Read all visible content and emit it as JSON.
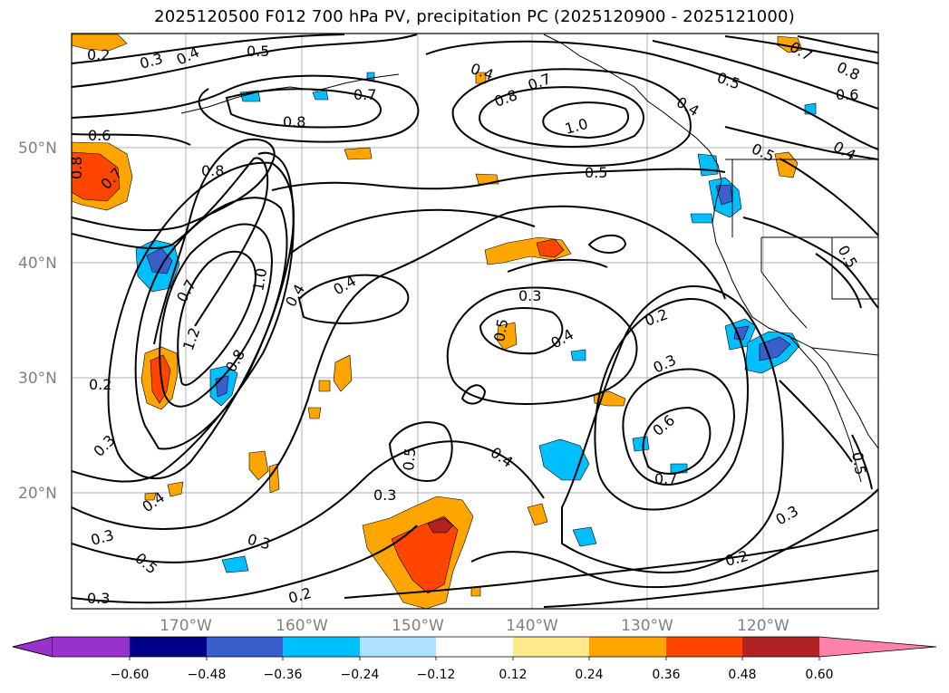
{
  "title": "2025120500 F012 700 hPa PV, precipitation PC (2025120900 - 2025121000)",
  "lat_labels": [
    "50°N",
    "40°N",
    "30°N",
    "20°N"
  ],
  "lon_labels": [
    "170°W",
    "160°W",
    "150°W",
    "140°W",
    "130°W",
    "120°W"
  ],
  "contour_labels": [
    "0.2",
    "0.3",
    "0.4",
    "0.5",
    "0.6",
    "0.7",
    "0.8",
    "1.0",
    "1.2"
  ],
  "colorbar": {
    "ticks": [
      "−0.60",
      "−0.48",
      "−0.36",
      "−0.24",
      "−0.12",
      "0.12",
      "0.24",
      "0.36",
      "0.48",
      "0.60"
    ],
    "colors": {
      "under": "#9932cc",
      "m60": "#00008b",
      "m48": "#3a5fcd",
      "m36": "#00bfff",
      "m24": "#b0e2ff",
      "zero": "#ffffff",
      "p12": "#ffe98a",
      "p24": "#ffa500",
      "p36": "#ff4500",
      "p48": "#b22222",
      "over": "#ff82ab"
    }
  }
}
